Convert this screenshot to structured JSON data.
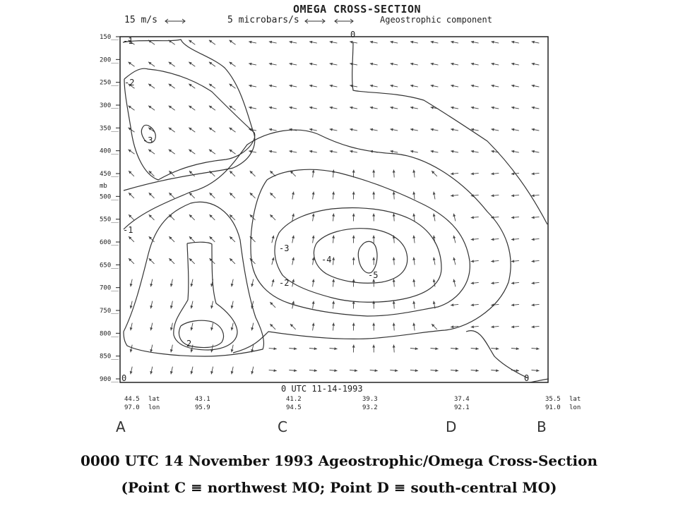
{
  "header": {
    "title": "OMEGA CROSS-SECTION",
    "wind_scale": "15 m/s",
    "omega_scale": "5 microbars/s",
    "ageo_label": "Ageostrophic component"
  },
  "chart_data": {
    "type": "contour",
    "title": "OMEGA CROSS-SECTION",
    "ylabel": "mb",
    "y_ticks": [
      "150",
      "200",
      "250",
      "300",
      "350",
      "400",
      "450",
      "500",
      "550",
      "600",
      "650",
      "700",
      "750",
      "800",
      "850",
      "900"
    ],
    "ylim": [
      900,
      150
    ],
    "valid_time": "0 UTC   11-14-1993",
    "x_points": [
      {
        "lat": "44.5",
        "lon": "97.0",
        "point": "A"
      },
      {
        "lat": "43.1",
        "lon": "95.9",
        "point": ""
      },
      {
        "lat": "41.2",
        "lon": "94.5",
        "point": "C"
      },
      {
        "lat": "39.3",
        "lon": "93.2",
        "point": ""
      },
      {
        "lat": "37.4",
        "lon": "92.1",
        "point": "D"
      },
      {
        "lat": "35.5",
        "lon": "91.0",
        "point": "B"
      }
    ],
    "lat_label": "lat",
    "lon_label": "lon",
    "contour_labels": [
      "-1",
      "-2",
      "-3",
      "-1",
      "0",
      "-3",
      "-4",
      "-5",
      "-2",
      "2",
      "0",
      "0"
    ],
    "contour_values": [
      -5,
      -4,
      -3,
      -2,
      -1,
      0,
      1,
      2
    ],
    "grid": false
  },
  "caption": {
    "line1": "0000 UTC 14 November 1993 Ageostrophic/Omega Cross-Section",
    "line2": "(Point C ≡ northwest MO; Point D ≡ south-central MO)"
  }
}
